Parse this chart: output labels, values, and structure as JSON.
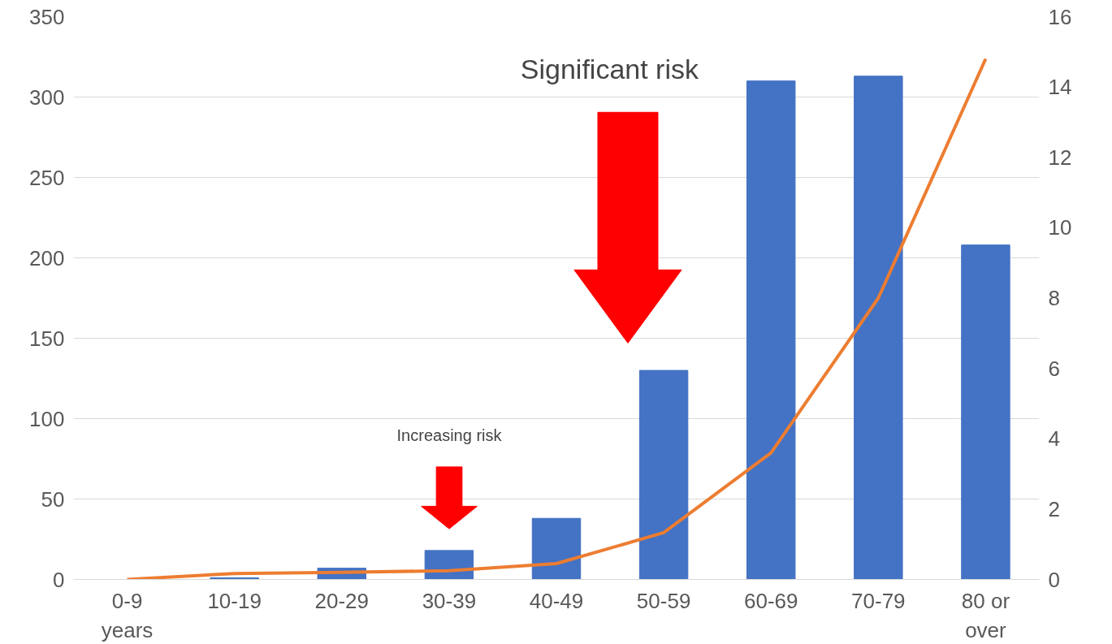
{
  "chart_data": {
    "type": "bar",
    "categories": [
      "0-9 years",
      "10-19",
      "20-29",
      "30-39",
      "40-49",
      "50-59",
      "60-69",
      "70-79",
      "80 or over"
    ],
    "series": [
      {
        "color": "#4472c4",
        "values": [
          0,
          1,
          7,
          18,
          38,
          130,
          310,
          313,
          208
        ]
      },
      {
        "type": "line",
        "color": "#ed7d31",
        "axis": "y2",
        "values": [
          0,
          0.17,
          0.2,
          0.25,
          0.45,
          1.33,
          3.6,
          8.0,
          14.8
        ]
      }
    ],
    "ylim": [
      0,
      350
    ],
    "yticks": [
      0,
      50,
      100,
      150,
      200,
      250,
      300,
      350
    ],
    "y2lim": [
      0,
      16
    ],
    "y2ticks": [
      0,
      2,
      4,
      6,
      8,
      10,
      12,
      14,
      16
    ],
    "grid": "y",
    "marker": "none",
    "line_style": "solid",
    "annotations": [
      "Increasing risk",
      "Significant risk"
    ]
  }
}
